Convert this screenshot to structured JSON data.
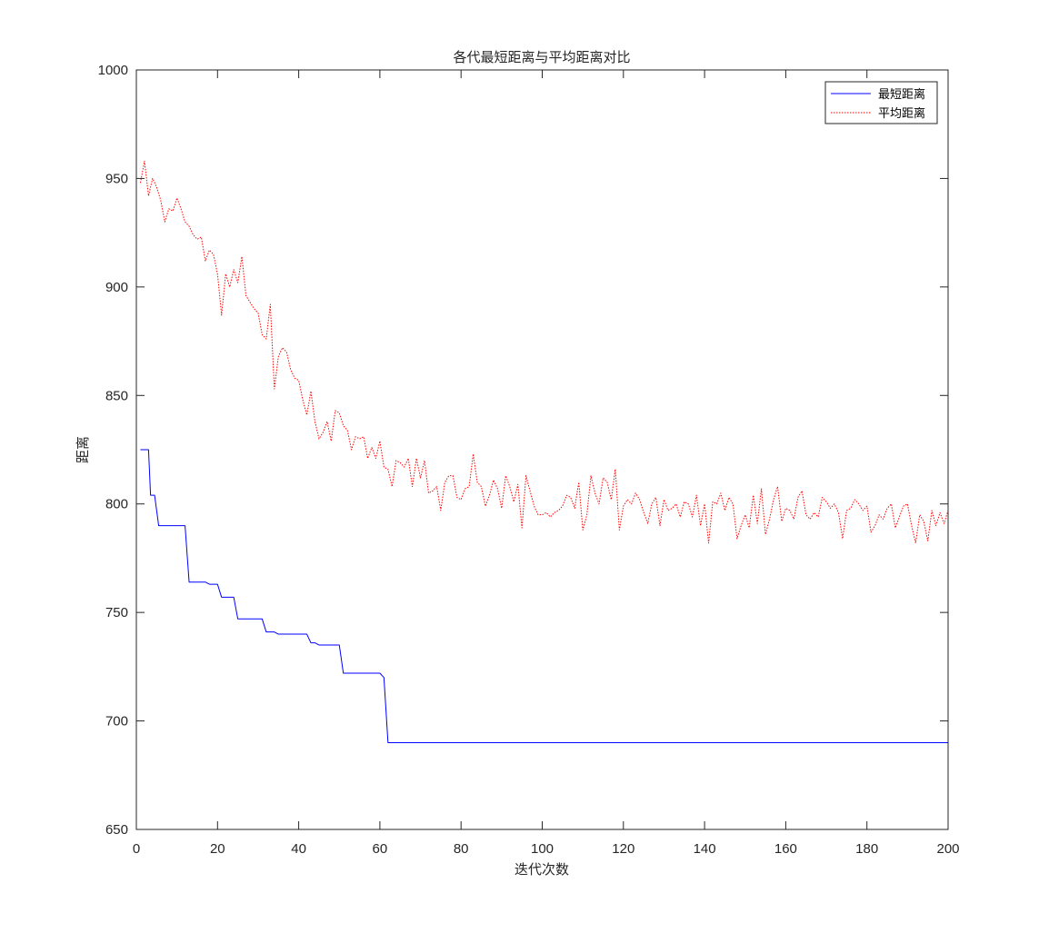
{
  "chart_data": {
    "type": "line",
    "title": "各代最短距离与平均距离对比",
    "xlabel": "迭代次数",
    "ylabel": "距离",
    "xlim": [
      0,
      200
    ],
    "ylim": [
      650,
      1000
    ],
    "xticks": [
      0,
      20,
      40,
      60,
      80,
      100,
      120,
      140,
      160,
      180,
      200
    ],
    "yticks": [
      650,
      700,
      750,
      800,
      850,
      900,
      950,
      1000
    ],
    "grid": false,
    "legend_position": "top-right",
    "series": [
      {
        "name": "最短距离",
        "color": "#0000ff",
        "line_style": "solid",
        "points": [
          [
            1,
            825
          ],
          [
            3,
            825
          ],
          [
            3.5,
            804
          ],
          [
            4.5,
            804
          ],
          [
            5.5,
            790
          ],
          [
            12,
            790
          ],
          [
            13,
            764
          ],
          [
            17,
            764
          ],
          [
            18,
            763
          ],
          [
            20,
            763
          ],
          [
            21,
            757
          ],
          [
            24,
            757
          ],
          [
            25,
            747
          ],
          [
            31,
            747
          ],
          [
            32,
            741
          ],
          [
            34,
            741
          ],
          [
            35,
            740
          ],
          [
            42,
            740
          ],
          [
            43,
            736
          ],
          [
            44,
            736
          ],
          [
            45,
            735
          ],
          [
            50,
            735
          ],
          [
            51,
            722
          ],
          [
            60,
            722
          ],
          [
            61,
            720
          ],
          [
            62,
            690
          ],
          [
            200,
            690
          ]
        ]
      },
      {
        "name": "平均距离",
        "color": "#ff0000",
        "line_style": "dotted",
        "x_start": 1,
        "x_step": 1,
        "values": [
          948,
          958,
          942,
          950,
          946,
          940,
          930,
          936,
          935,
          941,
          936,
          930,
          928,
          924,
          922,
          923,
          912,
          917,
          915,
          906,
          887,
          906,
          900,
          908,
          902,
          914,
          896,
          893,
          890,
          888,
          878,
          876,
          892,
          853,
          868,
          872,
          870,
          862,
          858,
          857,
          848,
          841,
          852,
          838,
          830,
          833,
          838,
          829,
          843,
          842,
          836,
          834,
          825,
          831,
          830,
          831,
          821,
          826,
          821,
          829,
          817,
          816,
          808,
          820,
          819,
          817,
          821,
          808,
          821,
          812,
          820,
          805,
          806,
          808,
          797,
          810,
          813,
          813,
          803,
          802,
          807,
          808,
          823,
          810,
          808,
          799,
          804,
          811,
          807,
          798,
          813,
          808,
          801,
          809,
          789,
          813,
          806,
          799,
          795,
          795,
          796,
          794,
          796,
          797,
          799,
          804,
          803,
          798,
          810,
          788,
          795,
          813,
          805,
          800,
          812,
          810,
          802,
          816,
          788,
          799,
          802,
          800,
          805,
          802,
          796,
          791,
          800,
          803,
          790,
          802,
          797,
          798,
          800,
          794,
          801,
          800,
          794,
          804,
          790,
          800,
          782,
          801,
          800,
          805,
          797,
          803,
          800,
          784,
          790,
          795,
          789,
          804,
          791,
          807,
          786,
          793,
          802,
          808,
          792,
          798,
          797,
          793,
          803,
          806,
          795,
          793,
          796,
          794,
          803,
          801,
          798,
          800,
          796,
          784,
          797,
          798,
          802,
          800,
          797,
          799,
          787,
          790,
          795,
          793,
          798,
          800,
          789,
          794,
          799,
          800,
          790,
          782,
          795,
          792,
          783,
          797,
          790,
          796,
          791,
          797
        ]
      }
    ]
  }
}
